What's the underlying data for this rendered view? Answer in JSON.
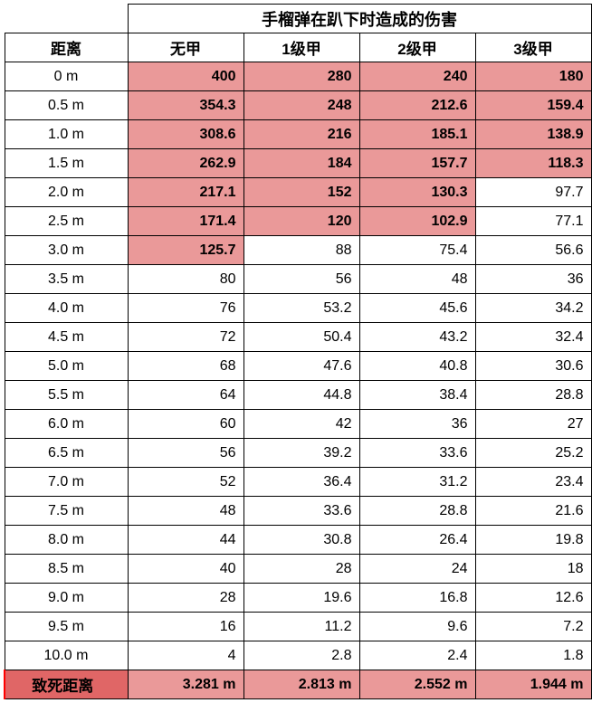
{
  "table": {
    "title": "手榴弹在趴下时造成的伤害",
    "dist_header": "距离",
    "columns": [
      "无甲",
      "1级甲",
      "2级甲",
      "3级甲"
    ],
    "rows": [
      {
        "dist": "0 m",
        "vals": [
          {
            "v": "400",
            "hl": true
          },
          {
            "v": "280",
            "hl": true
          },
          {
            "v": "240",
            "hl": true
          },
          {
            "v": "180",
            "hl": true
          }
        ]
      },
      {
        "dist": "0.5 m",
        "vals": [
          {
            "v": "354.3",
            "hl": true
          },
          {
            "v": "248",
            "hl": true
          },
          {
            "v": "212.6",
            "hl": true
          },
          {
            "v": "159.4",
            "hl": true
          }
        ]
      },
      {
        "dist": "1.0 m",
        "vals": [
          {
            "v": "308.6",
            "hl": true
          },
          {
            "v": "216",
            "hl": true
          },
          {
            "v": "185.1",
            "hl": true
          },
          {
            "v": "138.9",
            "hl": true
          }
        ]
      },
      {
        "dist": "1.5 m",
        "vals": [
          {
            "v": "262.9",
            "hl": true
          },
          {
            "v": "184",
            "hl": true
          },
          {
            "v": "157.7",
            "hl": true
          },
          {
            "v": "118.3",
            "hl": true
          }
        ]
      },
      {
        "dist": "2.0 m",
        "vals": [
          {
            "v": "217.1",
            "hl": true
          },
          {
            "v": "152",
            "hl": true
          },
          {
            "v": "130.3",
            "hl": true
          },
          {
            "v": "97.7",
            "hl": false
          }
        ]
      },
      {
        "dist": "2.5 m",
        "vals": [
          {
            "v": "171.4",
            "hl": true
          },
          {
            "v": "120",
            "hl": true
          },
          {
            "v": "102.9",
            "hl": true
          },
          {
            "v": "77.1",
            "hl": false
          }
        ]
      },
      {
        "dist": "3.0 m",
        "vals": [
          {
            "v": "125.7",
            "hl": true
          },
          {
            "v": "88",
            "hl": false
          },
          {
            "v": "75.4",
            "hl": false
          },
          {
            "v": "56.6",
            "hl": false
          }
        ]
      },
      {
        "dist": "3.5 m",
        "vals": [
          {
            "v": "80",
            "hl": false
          },
          {
            "v": "56",
            "hl": false
          },
          {
            "v": "48",
            "hl": false
          },
          {
            "v": "36",
            "hl": false
          }
        ]
      },
      {
        "dist": "4.0 m",
        "vals": [
          {
            "v": "76",
            "hl": false
          },
          {
            "v": "53.2",
            "hl": false
          },
          {
            "v": "45.6",
            "hl": false
          },
          {
            "v": "34.2",
            "hl": false
          }
        ]
      },
      {
        "dist": "4.5 m",
        "vals": [
          {
            "v": "72",
            "hl": false
          },
          {
            "v": "50.4",
            "hl": false
          },
          {
            "v": "43.2",
            "hl": false
          },
          {
            "v": "32.4",
            "hl": false
          }
        ]
      },
      {
        "dist": "5.0 m",
        "vals": [
          {
            "v": "68",
            "hl": false
          },
          {
            "v": "47.6",
            "hl": false
          },
          {
            "v": "40.8",
            "hl": false
          },
          {
            "v": "30.6",
            "hl": false
          }
        ]
      },
      {
        "dist": "5.5 m",
        "vals": [
          {
            "v": "64",
            "hl": false
          },
          {
            "v": "44.8",
            "hl": false
          },
          {
            "v": "38.4",
            "hl": false
          },
          {
            "v": "28.8",
            "hl": false
          }
        ]
      },
      {
        "dist": "6.0 m",
        "vals": [
          {
            "v": "60",
            "hl": false
          },
          {
            "v": "42",
            "hl": false
          },
          {
            "v": "36",
            "hl": false
          },
          {
            "v": "27",
            "hl": false
          }
        ]
      },
      {
        "dist": "6.5 m",
        "vals": [
          {
            "v": "56",
            "hl": false
          },
          {
            "v": "39.2",
            "hl": false
          },
          {
            "v": "33.6",
            "hl": false
          },
          {
            "v": "25.2",
            "hl": false
          }
        ]
      },
      {
        "dist": "7.0 m",
        "vals": [
          {
            "v": "52",
            "hl": false
          },
          {
            "v": "36.4",
            "hl": false
          },
          {
            "v": "31.2",
            "hl": false
          },
          {
            "v": "23.4",
            "hl": false
          }
        ]
      },
      {
        "dist": "7.5 m",
        "vals": [
          {
            "v": "48",
            "hl": false
          },
          {
            "v": "33.6",
            "hl": false
          },
          {
            "v": "28.8",
            "hl": false
          },
          {
            "v": "21.6",
            "hl": false
          }
        ]
      },
      {
        "dist": "8.0 m",
        "vals": [
          {
            "v": "44",
            "hl": false
          },
          {
            "v": "30.8",
            "hl": false
          },
          {
            "v": "26.4",
            "hl": false
          },
          {
            "v": "19.8",
            "hl": false
          }
        ]
      },
      {
        "dist": "8.5 m",
        "vals": [
          {
            "v": "40",
            "hl": false
          },
          {
            "v": "28",
            "hl": false
          },
          {
            "v": "24",
            "hl": false
          },
          {
            "v": "18",
            "hl": false
          }
        ]
      },
      {
        "dist": "9.0 m",
        "vals": [
          {
            "v": "28",
            "hl": false
          },
          {
            "v": "19.6",
            "hl": false
          },
          {
            "v": "16.8",
            "hl": false
          },
          {
            "v": "12.6",
            "hl": false
          }
        ]
      },
      {
        "dist": "9.5 m",
        "vals": [
          {
            "v": "16",
            "hl": false
          },
          {
            "v": "11.2",
            "hl": false
          },
          {
            "v": "9.6",
            "hl": false
          },
          {
            "v": "7.2",
            "hl": false
          }
        ]
      },
      {
        "dist": "10.0 m",
        "vals": [
          {
            "v": "4",
            "hl": false
          },
          {
            "v": "2.8",
            "hl": false
          },
          {
            "v": "2.4",
            "hl": false
          },
          {
            "v": "1.8",
            "hl": false
          }
        ]
      }
    ],
    "lethal": {
      "label": "致死距离",
      "vals": [
        "3.281 m",
        "2.813 m",
        "2.552 m",
        "1.944 m"
      ]
    },
    "colors": {
      "highlight": "#ea9999",
      "lethal_label_bg": "#e06666",
      "border": "#000000",
      "background": "#ffffff",
      "accent_border": "#ff0000"
    },
    "font_sizes": {
      "title": 18,
      "header": 17,
      "body": 16
    }
  }
}
